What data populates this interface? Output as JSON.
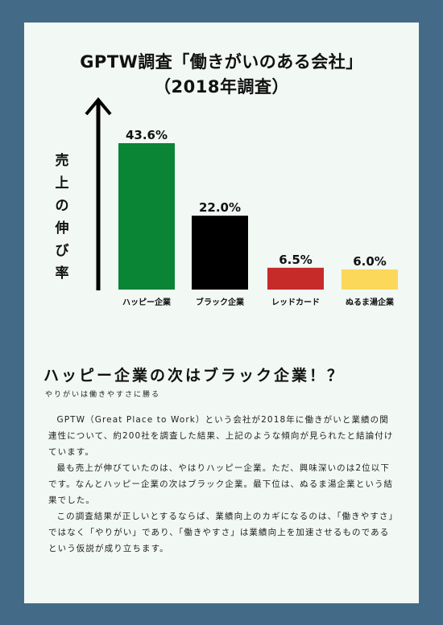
{
  "chart_data": {
    "type": "bar",
    "title": "GPTW調査「働きがいのある会社」",
    "subtitle": "（2018年調査）",
    "ylabel": "売上の伸び率",
    "categories": [
      "ハッピー企業",
      "ブラック企業",
      "レッドカード",
      "ぬるま湯企業"
    ],
    "values": [
      43.6,
      22.0,
      6.5,
      6.0
    ],
    "value_labels": [
      "43.6%",
      "22.0%",
      "6.5%",
      "6.0%"
    ],
    "colors": [
      "#0a8435",
      "#000000",
      "#c62a29",
      "#fbd85a"
    ],
    "ylim": [
      0,
      43.6
    ],
    "grid": false,
    "legend": "none"
  },
  "section": {
    "heading": "ハッピー企業の次はブラック企業！？",
    "subheading": "やりがいは働きやすさに勝る"
  },
  "body": {
    "p1": "GPTW（Great Place to Work）という会社が2018年に働きがいと業績の関連性について、約200社を調査した結果、上記のような傾向が見られたと結論付けています。",
    "p2": "最も売上が伸びていたのは、やはりハッピー企業。ただ、興味深いのは2位以下です。なんとハッピー企業の次はブラック企業。最下位は、ぬるま湯企業という結果でした。",
    "p3": "この調査結果が正しいとするならば、業績向上のカギになるのは、「働きやすさ」ではなく「やりがい」であり、「働きやすさ」は業績向上を加速させるものであるという仮説が成り立ちます。"
  }
}
